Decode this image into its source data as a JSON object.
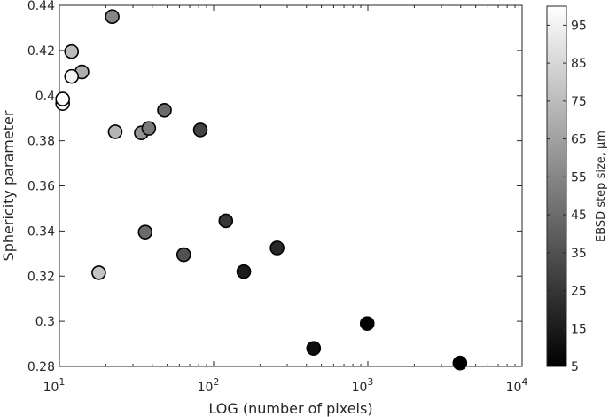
{
  "chart_data": {
    "type": "scatter",
    "xscale": "log",
    "xlabel": "LOG (number of pixels)",
    "ylabel": "Sphericity parameter",
    "xlim": [
      10,
      10000
    ],
    "ylim": [
      0.28,
      0.44
    ],
    "grid": false,
    "x_ticks": [
      10,
      100,
      1000,
      10000
    ],
    "x_tick_labels": [
      {
        "base": "10",
        "exp": "1"
      },
      {
        "base": "10",
        "exp": "2"
      },
      {
        "base": "10",
        "exp": "3"
      },
      {
        "base": "10",
        "exp": "4"
      }
    ],
    "y_ticks": [
      0.28,
      0.3,
      0.32,
      0.34,
      0.36,
      0.38,
      0.4,
      0.42,
      0.44
    ],
    "y_tick_labels": [
      "0.28",
      "0.3",
      "0.32",
      "0.34",
      "0.36",
      "0.38",
      "0.4",
      "0.42",
      "0.44"
    ],
    "colorbar": {
      "label": "EBSD step size, μm",
      "range": [
        5,
        100
      ],
      "ticks": [
        5,
        15,
        25,
        35,
        45,
        55,
        65,
        75,
        85,
        95
      ],
      "tick_labels": [
        "5",
        "15",
        "25",
        "35",
        "45",
        "55",
        "65",
        "75",
        "85",
        "95"
      ],
      "colormap": "gray"
    },
    "points": [
      {
        "x": 22,
        "y": 0.435,
        "step": 55
      },
      {
        "x": 12,
        "y": 0.4195,
        "step": 75
      },
      {
        "x": 14,
        "y": 0.4105,
        "step": 70
      },
      {
        "x": 12,
        "y": 0.4085,
        "step": 95
      },
      {
        "x": 10.5,
        "y": 0.3965,
        "step": 100
      },
      {
        "x": 10.5,
        "y": 0.3985,
        "step": 100
      },
      {
        "x": 48,
        "y": 0.3935,
        "step": 45
      },
      {
        "x": 23,
        "y": 0.384,
        "step": 72
      },
      {
        "x": 34,
        "y": 0.3835,
        "step": 60
      },
      {
        "x": 38,
        "y": 0.3855,
        "step": 50
      },
      {
        "x": 82,
        "y": 0.3848,
        "step": 30
      },
      {
        "x": 18,
        "y": 0.3215,
        "step": 78
      },
      {
        "x": 36,
        "y": 0.3395,
        "step": 45
      },
      {
        "x": 64,
        "y": 0.3295,
        "step": 35
      },
      {
        "x": 120,
        "y": 0.3445,
        "step": 25
      },
      {
        "x": 157,
        "y": 0.322,
        "step": 15
      },
      {
        "x": 258,
        "y": 0.3325,
        "step": 20
      },
      {
        "x": 445,
        "y": 0.288,
        "step": 10
      },
      {
        "x": 990,
        "y": 0.299,
        "step": 5
      },
      {
        "x": 3950,
        "y": 0.2815,
        "step": 5
      }
    ]
  }
}
